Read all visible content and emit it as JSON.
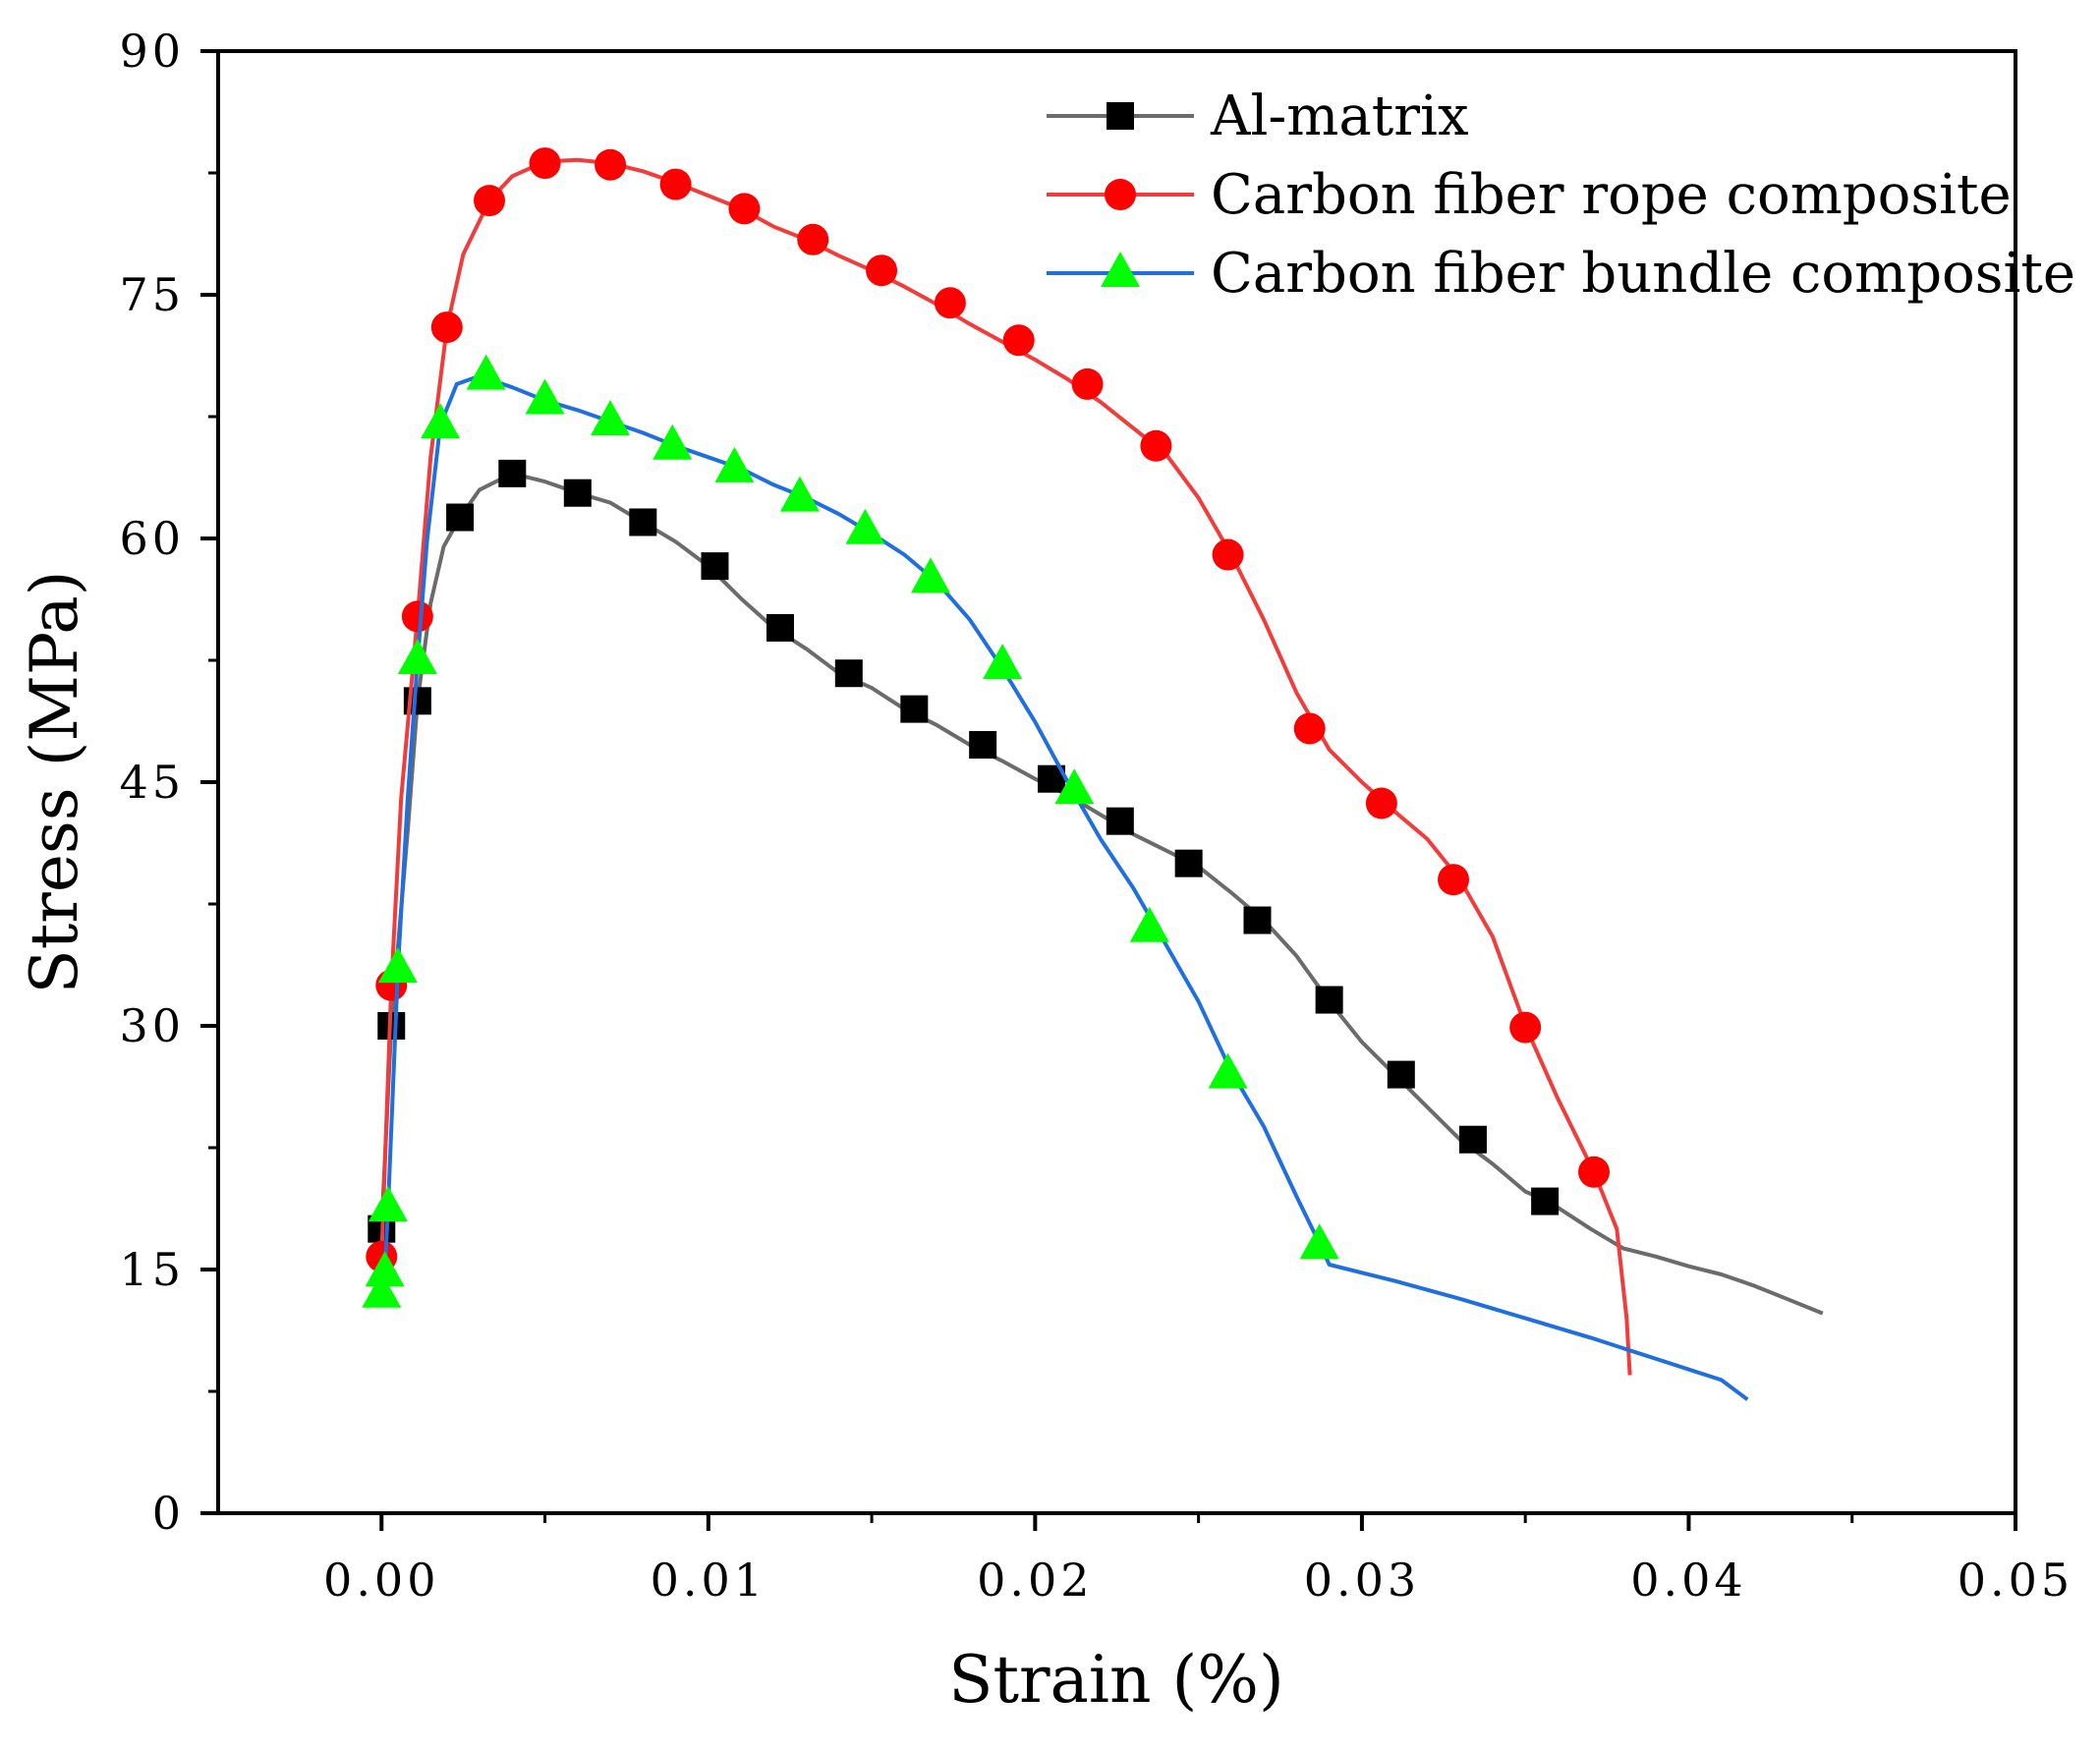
{
  "chart_data": {
    "type": "line",
    "title": "",
    "xlabel": "Strain (%)",
    "ylabel": "Stress (MPa)",
    "xlim": [
      -0.005,
      0.05
    ],
    "ylim": [
      0,
      90
    ],
    "x_ticks": [
      0.0,
      0.01,
      0.02,
      0.03,
      0.04,
      0.05
    ],
    "x_tick_labels": [
      "0.00",
      "0.01",
      "0.02",
      "0.03",
      "0.04",
      "0.05"
    ],
    "y_ticks": [
      0,
      15,
      30,
      45,
      60,
      75,
      90
    ],
    "y_tick_labels": [
      "0",
      "15",
      "30",
      "45",
      "60",
      "75",
      "90"
    ],
    "grid": false,
    "legend_position": "top-right",
    "series": [
      {
        "name": "Al-matrix",
        "color": "#6b6b6b",
        "marker": "square",
        "marker_color": "#000000",
        "line": [
          [
            0,
            17.5
          ],
          [
            0.0003,
            30
          ],
          [
            0.0008,
            42
          ],
          [
            0.0011,
            50
          ],
          [
            0.0015,
            56
          ],
          [
            0.0019,
            59.5
          ],
          [
            0.0024,
            61.3
          ],
          [
            0.003,
            63
          ],
          [
            0.004,
            64
          ],
          [
            0.005,
            63.5
          ],
          [
            0.006,
            62.8
          ],
          [
            0.007,
            62.2
          ],
          [
            0.008,
            61
          ],
          [
            0.009,
            59.8
          ],
          [
            0.01,
            58.3
          ],
          [
            0.011,
            56.3
          ],
          [
            0.012,
            54.5
          ],
          [
            0.013,
            53.2
          ],
          [
            0.014,
            51.7
          ],
          [
            0.015,
            50.8
          ],
          [
            0.016,
            49.5
          ],
          [
            0.017,
            48.5
          ],
          [
            0.018,
            47.3
          ],
          [
            0.019,
            46.3
          ],
          [
            0.02,
            45.2
          ],
          [
            0.021,
            44.2
          ],
          [
            0.022,
            43
          ],
          [
            0.023,
            41.8
          ],
          [
            0.024,
            40.8
          ],
          [
            0.025,
            39.8
          ],
          [
            0.026,
            38.2
          ],
          [
            0.027,
            36.5
          ],
          [
            0.028,
            34.3
          ],
          [
            0.029,
            31.5
          ],
          [
            0.03,
            29
          ],
          [
            0.031,
            27
          ],
          [
            0.032,
            25
          ],
          [
            0.033,
            23
          ],
          [
            0.034,
            21.5
          ],
          [
            0.035,
            19.8
          ],
          [
            0.0357,
            19.2
          ],
          [
            0.037,
            17.5
          ],
          [
            0.038,
            16.3
          ],
          [
            0.039,
            15.8
          ],
          [
            0.04,
            15.2
          ],
          [
            0.041,
            14.7
          ],
          [
            0.042,
            14
          ],
          [
            0.043,
            13.2
          ],
          [
            0.0441,
            12.3
          ]
        ],
        "markers": [
          [
            0,
            17.5
          ],
          [
            0.0003,
            30
          ],
          [
            0.0011,
            50
          ],
          [
            0.0024,
            61.3
          ],
          [
            0.004,
            64
          ],
          [
            0.006,
            62.8
          ],
          [
            0.008,
            61
          ],
          [
            0.0102,
            58.3
          ],
          [
            0.0122,
            54.5
          ],
          [
            0.0143,
            51.7
          ],
          [
            0.0163,
            49.5
          ],
          [
            0.0184,
            47.3
          ],
          [
            0.0205,
            45.2
          ],
          [
            0.0226,
            42.6
          ],
          [
            0.0247,
            40
          ],
          [
            0.0268,
            36.5
          ],
          [
            0.029,
            31.6
          ],
          [
            0.0312,
            27
          ],
          [
            0.0334,
            23
          ],
          [
            0.0356,
            19.2
          ]
        ]
      },
      {
        "name": "Carbon fiber rope composite",
        "color": "#f23c3c",
        "marker": "circle",
        "marker_color": "#ff0000",
        "line": [
          [
            0,
            15.8
          ],
          [
            0.0003,
            32.5
          ],
          [
            0.0006,
            44
          ],
          [
            0.0011,
            55.2
          ],
          [
            0.0015,
            65
          ],
          [
            0.002,
            73
          ],
          [
            0.0025,
            77.5
          ],
          [
            0.0033,
            80.8
          ],
          [
            0.004,
            82.3
          ],
          [
            0.005,
            83.2
          ],
          [
            0.006,
            83.3
          ],
          [
            0.007,
            83.1
          ],
          [
            0.008,
            82.6
          ],
          [
            0.009,
            81.9
          ],
          [
            0.01,
            81.1
          ],
          [
            0.011,
            80.3
          ],
          [
            0.012,
            79.2
          ],
          [
            0.013,
            78.4
          ],
          [
            0.014,
            77.4
          ],
          [
            0.015,
            76.5
          ],
          [
            0.016,
            75.5
          ],
          [
            0.017,
            74.4
          ],
          [
            0.018,
            73.2
          ],
          [
            0.019,
            72.1
          ],
          [
            0.02,
            71
          ],
          [
            0.021,
            69.8
          ],
          [
            0.022,
            68.4
          ],
          [
            0.023,
            66.8
          ],
          [
            0.024,
            65.2
          ],
          [
            0.025,
            62.5
          ],
          [
            0.026,
            59
          ],
          [
            0.027,
            55
          ],
          [
            0.028,
            50.5
          ],
          [
            0.029,
            47
          ],
          [
            0.03,
            45
          ],
          [
            0.031,
            43.2
          ],
          [
            0.032,
            41.5
          ],
          [
            0.033,
            39
          ],
          [
            0.034,
            35.5
          ],
          [
            0.035,
            30
          ],
          [
            0.036,
            25.5
          ],
          [
            0.0371,
            21
          ],
          [
            0.0378,
            17.5
          ],
          [
            0.0381,
            12
          ],
          [
            0.0382,
            8.5
          ]
        ],
        "markers": [
          [
            0,
            15.8
          ],
          [
            0.0003,
            32.5
          ],
          [
            0.0011,
            55.2
          ],
          [
            0.002,
            73
          ],
          [
            0.0033,
            80.8
          ],
          [
            0.005,
            83.1
          ],
          [
            0.007,
            83
          ],
          [
            0.009,
            81.8
          ],
          [
            0.0111,
            80.3
          ],
          [
            0.0132,
            78.4
          ],
          [
            0.0153,
            76.5
          ],
          [
            0.0174,
            74.5
          ],
          [
            0.0195,
            72.2
          ],
          [
            0.0216,
            69.5
          ],
          [
            0.0237,
            65.7
          ],
          [
            0.0259,
            59
          ],
          [
            0.0284,
            48.3
          ],
          [
            0.0306,
            43.7
          ],
          [
            0.0328,
            39
          ],
          [
            0.035,
            29.9
          ],
          [
            0.0371,
            21
          ]
        ]
      },
      {
        "name": "Carbon fiber bundle composite",
        "color": "#1f6fe0",
        "marker": "triangle",
        "marker_color": "#00ff00",
        "line": [
          [
            0,
            13.5
          ],
          [
            0.0001,
            14.8
          ],
          [
            0.0002,
            18.8
          ],
          [
            0.0005,
            33.5
          ],
          [
            0.0008,
            44
          ],
          [
            0.0011,
            52.5
          ],
          [
            0.0014,
            60
          ],
          [
            0.0018,
            67
          ],
          [
            0.0023,
            69.5
          ],
          [
            0.003,
            70
          ],
          [
            0.004,
            69.3
          ],
          [
            0.005,
            68.5
          ],
          [
            0.006,
            67.9
          ],
          [
            0.007,
            67.2
          ],
          [
            0.008,
            66.5
          ],
          [
            0.009,
            65.7
          ],
          [
            0.01,
            65
          ],
          [
            0.011,
            64.3
          ],
          [
            0.012,
            63.3
          ],
          [
            0.013,
            62.5
          ],
          [
            0.014,
            61.5
          ],
          [
            0.015,
            60.3
          ],
          [
            0.016,
            59
          ],
          [
            0.017,
            57.3
          ],
          [
            0.018,
            55
          ],
          [
            0.019,
            52
          ],
          [
            0.02,
            48.7
          ],
          [
            0.021,
            45
          ],
          [
            0.022,
            41.5
          ],
          [
            0.023,
            38.5
          ],
          [
            0.024,
            35
          ],
          [
            0.025,
            31.5
          ],
          [
            0.026,
            27.2
          ],
          [
            0.027,
            23.8
          ],
          [
            0.028,
            19.5
          ],
          [
            0.0288,
            16.2
          ],
          [
            0.029,
            15.3
          ],
          [
            0.031,
            14.3
          ],
          [
            0.033,
            13.2
          ],
          [
            0.035,
            12
          ],
          [
            0.037,
            10.8
          ],
          [
            0.039,
            9.5
          ],
          [
            0.041,
            8.2
          ],
          [
            0.0418,
            7
          ]
        ],
        "markers": [
          [
            0,
            13.5
          ],
          [
            0.0001,
            14.8
          ],
          [
            0.0002,
            18.8
          ],
          [
            0.0005,
            33.5
          ],
          [
            0.0011,
            52.5
          ],
          [
            0.0018,
            67
          ],
          [
            0.0032,
            70
          ],
          [
            0.005,
            68.5
          ],
          [
            0.007,
            67.2
          ],
          [
            0.0089,
            65.7
          ],
          [
            0.0108,
            64.3
          ],
          [
            0.0128,
            62.5
          ],
          [
            0.0148,
            60.5
          ],
          [
            0.0168,
            57.5
          ],
          [
            0.019,
            52.2
          ],
          [
            0.0212,
            44.5
          ],
          [
            0.0235,
            36
          ],
          [
            0.0259,
            27
          ],
          [
            0.0287,
            16.5
          ]
        ]
      }
    ]
  }
}
